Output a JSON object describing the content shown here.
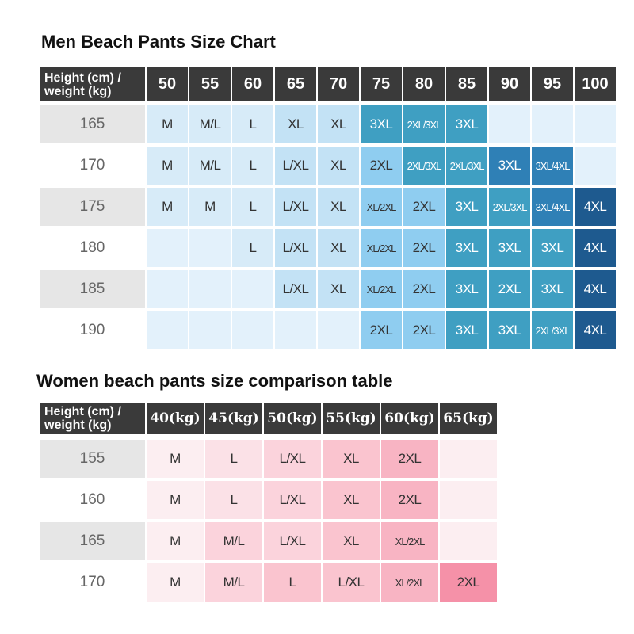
{
  "men": {
    "title": "Men Beach Pants Size Chart",
    "corner": "Height (cm) / weight (kg)",
    "columns": [
      "50",
      "55",
      "60",
      "65",
      "70",
      "75",
      "80",
      "85",
      "90",
      "95",
      "100"
    ],
    "rows": [
      {
        "height": "165",
        "sizes": [
          "M",
          "M/L",
          "L",
          "XL",
          "XL",
          "3XL",
          "2XL/3XL",
          "3XL",
          null,
          null,
          null
        ]
      },
      {
        "height": "170",
        "sizes": [
          "M",
          "M/L",
          "L",
          "L/XL",
          "XL",
          "2XL",
          "2XL/3XL",
          "2XL/3XL",
          "3XL",
          "3XL/4XL",
          null
        ]
      },
      {
        "height": "175",
        "sizes": [
          "M",
          "M",
          "L",
          "L/XL",
          "XL",
          "XL/2XL",
          "2XL",
          "3XL",
          "2XL/3XL",
          "3XL/4XL",
          "4XL"
        ]
      },
      {
        "height": "180",
        "sizes": [
          null,
          null,
          "L",
          "L/XL",
          "XL",
          "XL/2XL",
          "2XL",
          "3XL",
          "3XL",
          "3XL",
          "4XL"
        ]
      },
      {
        "height": "185",
        "sizes": [
          null,
          null,
          null,
          "L/XL",
          "XL",
          "XL/2XL",
          "2XL",
          "3XL",
          "2XL",
          "3XL",
          "4XL"
        ]
      },
      {
        "height": "190",
        "sizes": [
          null,
          null,
          null,
          null,
          null,
          "2XL",
          "2XL",
          "3XL",
          "3XL",
          "2XL/3XL",
          "4XL"
        ]
      }
    ]
  },
  "women": {
    "title": "Women beach pants size comparison table",
    "corner": "Height (cm) / weight (kg)",
    "columns": [
      "40(kg)",
      "45(kg)",
      "50(kg)",
      "55(kg)",
      "60(kg)",
      "65(kg)"
    ],
    "rows": [
      {
        "height": "155",
        "sizes": [
          "M",
          "L",
          "L/XL",
          "XL",
          "2XL",
          null
        ]
      },
      {
        "height": "160",
        "sizes": [
          "M",
          "L",
          "L/XL",
          "XL",
          "2XL",
          null
        ]
      },
      {
        "height": "165",
        "sizes": [
          "M",
          "M/L",
          "L/XL",
          "XL",
          "XL/2XL",
          null
        ]
      },
      {
        "height": "170",
        "sizes": [
          "M",
          "M/L",
          "L",
          "L/XL",
          "XL/2XL",
          "2XL"
        ]
      }
    ]
  }
}
